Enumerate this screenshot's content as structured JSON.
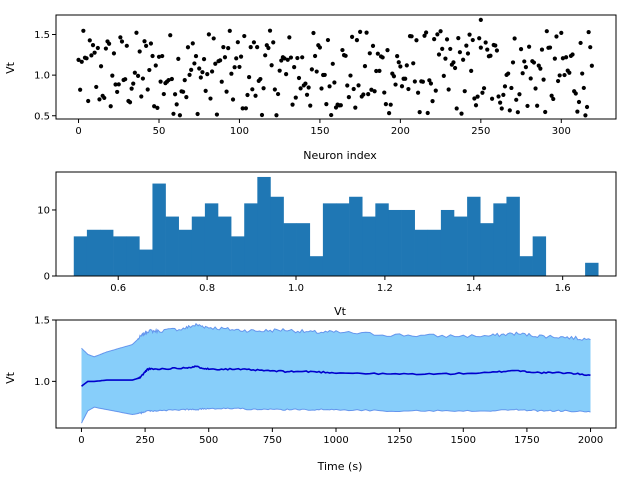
{
  "chart_data": [
    {
      "type": "scatter",
      "xlabel": "Neuron index",
      "ylabel": "Vt",
      "xlim": [
        -14,
        334
      ],
      "ylim": [
        0.46,
        1.74
      ],
      "xticks": [
        "0",
        "50",
        "100",
        "150",
        "200",
        "250",
        "300"
      ],
      "yticks": [
        "0.5",
        "1.0",
        "1.5"
      ],
      "n_points": 320,
      "value_range": [
        0.5,
        1.68
      ],
      "color": "#000000"
    },
    {
      "type": "bar",
      "xlabel": "Vt",
      "ylabel": "",
      "xlim": [
        0.46,
        1.72
      ],
      "ylim": [
        0,
        15.75
      ],
      "xticks": [
        "0.6",
        "0.8",
        "1.0",
        "1.2",
        "1.4",
        "1.6"
      ],
      "yticks": [
        "0",
        "10"
      ],
      "bin_start": 0.5,
      "bin_width": 0.0295,
      "values": [
        6,
        7,
        7,
        6,
        6,
        4,
        14,
        9,
        7,
        9,
        11,
        9,
        6,
        11,
        15,
        12,
        8,
        8,
        3,
        11,
        11,
        12,
        9,
        11,
        10,
        10,
        7,
        7,
        10,
        9,
        12,
        8,
        11,
        12,
        3,
        6,
        0,
        0,
        0,
        2
      ],
      "color": "#1f77b4"
    },
    {
      "type": "area",
      "xlabel": "Time (s)",
      "ylabel": "Vt",
      "xlim": [
        -100,
        2100
      ],
      "ylim": [
        0.62,
        1.5
      ],
      "xticks": [
        "0",
        "250",
        "500",
        "750",
        "1000",
        "1250",
        "1500",
        "1750",
        "2000"
      ],
      "yticks": [
        "1.0",
        "1.5"
      ],
      "fill_color": "#87cefa",
      "line_color": "#0000cd",
      "series": [
        {
          "role": "upper",
          "x": [
            0,
            25,
            50,
            100,
            150,
            200,
            230,
            260,
            300,
            400,
            450,
            500,
            600,
            700,
            800,
            900,
            1000,
            1200,
            1400,
            1600,
            1700,
            1800,
            1900,
            2000
          ],
          "values": [
            1.27,
            1.22,
            1.2,
            1.24,
            1.27,
            1.3,
            1.36,
            1.41,
            1.41,
            1.43,
            1.46,
            1.44,
            1.42,
            1.41,
            1.42,
            1.4,
            1.4,
            1.38,
            1.37,
            1.37,
            1.39,
            1.37,
            1.36,
            1.34
          ]
        },
        {
          "role": "mean",
          "x": [
            0,
            25,
            50,
            100,
            150,
            200,
            230,
            260,
            300,
            400,
            450,
            500,
            600,
            700,
            800,
            900,
            1000,
            1200,
            1400,
            1600,
            1700,
            1800,
            1900,
            2000
          ],
          "values": [
            0.96,
            1.0,
            1.0,
            1.01,
            1.01,
            1.01,
            1.03,
            1.1,
            1.1,
            1.11,
            1.12,
            1.1,
            1.1,
            1.09,
            1.08,
            1.08,
            1.07,
            1.06,
            1.06,
            1.07,
            1.09,
            1.07,
            1.07,
            1.05
          ]
        },
        {
          "role": "lower",
          "x": [
            0,
            25,
            50,
            100,
            150,
            200,
            230,
            260,
            300,
            400,
            450,
            500,
            600,
            700,
            800,
            900,
            1000,
            1200,
            1400,
            1600,
            1700,
            1800,
            1900,
            2000
          ],
          "values": [
            0.66,
            0.76,
            0.79,
            0.77,
            0.75,
            0.73,
            0.74,
            0.76,
            0.76,
            0.77,
            0.77,
            0.78,
            0.78,
            0.77,
            0.77,
            0.77,
            0.77,
            0.76,
            0.76,
            0.76,
            0.77,
            0.76,
            0.76,
            0.75
          ]
        }
      ]
    }
  ]
}
